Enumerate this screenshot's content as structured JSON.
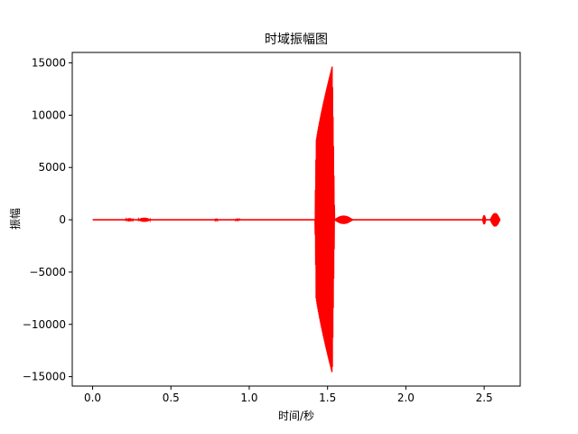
{
  "chart_data": {
    "type": "line",
    "title": "时域振幅图",
    "xlabel": "时间/秒",
    "ylabel": "振幅",
    "xlim": [
      -0.13,
      2.73
    ],
    "ylim": [
      -15900,
      16000
    ],
    "xticks": [
      "0.0",
      "0.5",
      "1.0",
      "1.5",
      "2.0",
      "2.5"
    ],
    "xtick_values": [
      0.0,
      0.5,
      1.0,
      1.5,
      2.0,
      2.5
    ],
    "yticks": [
      "−15000",
      "−10000",
      "−5000",
      "0",
      "5000",
      "10000",
      "15000"
    ],
    "ytick_values": [
      -15000,
      -10000,
      -5000,
      0,
      5000,
      10000,
      15000
    ],
    "grid": false,
    "series": [
      {
        "color": "#ff0000",
        "baseline": {
          "x": [
            0.0,
            2.6
          ],
          "y": [
            0,
            0
          ]
        },
        "bursts": [
          {
            "x_start": 0.21,
            "x_end": 0.26,
            "amplitude": 150
          },
          {
            "x_start": 0.29,
            "x_end": 0.37,
            "amplitude": 200
          },
          {
            "x_start": 0.78,
            "x_end": 0.8,
            "amplitude": 120
          },
          {
            "x_start": 0.91,
            "x_end": 0.94,
            "amplitude": 120
          },
          {
            "x_start": 1.42,
            "x_end": 1.545,
            "amplitude": 14700,
            "peak_x": 1.53
          },
          {
            "x_start": 1.545,
            "x_end": 1.66,
            "amplitude": 400
          },
          {
            "x_start": 2.49,
            "x_end": 2.51,
            "amplitude": 450
          },
          {
            "x_start": 2.54,
            "x_end": 2.6,
            "amplitude": 650
          }
        ]
      }
    ]
  }
}
